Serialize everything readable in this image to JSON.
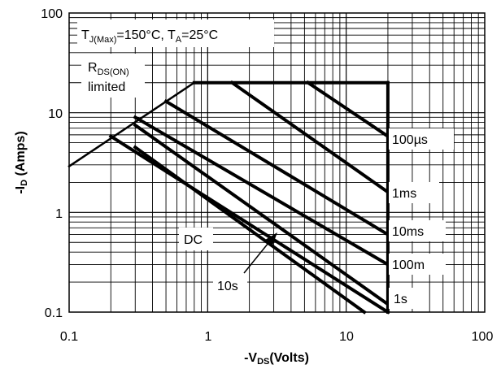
{
  "chart_data": {
    "type": "line",
    "x_scale": "log",
    "y_scale": "log",
    "xlim": [
      0.1,
      100
    ],
    "ylim": [
      0.1,
      100
    ],
    "grid": true,
    "x_tick_labels": [
      "0.1",
      "1",
      "10",
      "100"
    ],
    "y_tick_labels": [
      "0.1",
      "1",
      "10",
      "100"
    ],
    "xlabel": {
      "prefix": "-V",
      "sub": "DS",
      "suffix": "(Volts)"
    },
    "ylabel": {
      "prefix": "-I",
      "sub": "D",
      "suffix": " (Amps)"
    },
    "conditions": {
      "t1": "T",
      "t1_sub": "J(Max)",
      "t1_rest": "=150°C, T",
      "t2_sub": "A",
      "t2_rest": "=25°C"
    },
    "rds_label": {
      "main": "R",
      "sub": "DS(ON)",
      "line2": "limited"
    },
    "series_labels": {
      "s100us": "100µs",
      "s1ms": "1ms",
      "s10ms": "10ms",
      "s100m": "100m",
      "s1s": "1s",
      "s10s": "10s",
      "dc": "DC"
    },
    "rds_line": {
      "x": [
        0.1,
        0.8
      ],
      "y": [
        2.9,
        20
      ]
    },
    "current_limit": {
      "x": [
        0.8,
        20
      ],
      "y": [
        20,
        20
      ]
    },
    "voltage_limit": {
      "x": [
        20,
        20
      ],
      "y": [
        20,
        0.1
      ]
    },
    "series": [
      {
        "key": "s100us",
        "x": [
          5.3,
          20
        ],
        "y": [
          20,
          5.8
        ]
      },
      {
        "key": "s1ms",
        "x": [
          1.5,
          20
        ],
        "y": [
          20,
          1.6
        ]
      },
      {
        "key": "s10ms",
        "x": [
          0.5,
          20
        ],
        "y": [
          13,
          0.6
        ]
      },
      {
        "key": "s100m",
        "x": [
          0.3,
          20
        ],
        "y": [
          9,
          0.3
        ]
      },
      {
        "key": "s1s",
        "x": [
          0.3,
          20
        ],
        "y": [
          7.5,
          0.12
        ]
      },
      {
        "key": "s10s",
        "x": [
          0.2,
          20
        ],
        "y": [
          5.8,
          0.1
        ]
      },
      {
        "key": "dc",
        "x": [
          0.3,
          13.5
        ],
        "y": [
          4.5,
          0.1
        ]
      }
    ]
  }
}
